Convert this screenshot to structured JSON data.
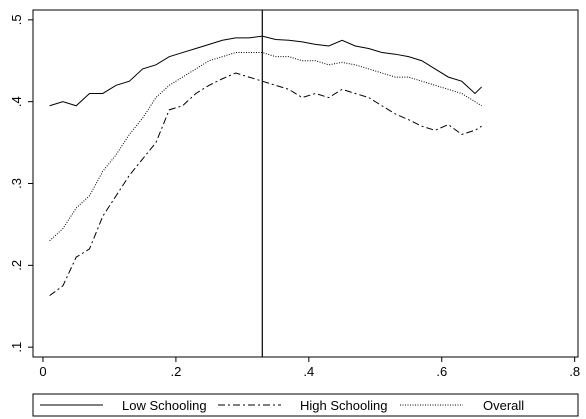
{
  "chart_data": {
    "type": "line",
    "x": [
      0.01,
      0.03,
      0.05,
      0.07,
      0.09,
      0.11,
      0.13,
      0.15,
      0.17,
      0.19,
      0.21,
      0.23,
      0.25,
      0.27,
      0.29,
      0.31,
      0.33,
      0.35,
      0.37,
      0.39,
      0.41,
      0.43,
      0.45,
      0.47,
      0.49,
      0.51,
      0.53,
      0.55,
      0.57,
      0.59,
      0.61,
      0.63,
      0.65,
      0.66
    ],
    "series": [
      {
        "name": "Low Schooling",
        "color": "#000000",
        "style": "solid",
        "values": [
          0.395,
          0.4,
          0.395,
          0.41,
          0.41,
          0.42,
          0.425,
          0.44,
          0.445,
          0.455,
          0.46,
          0.465,
          0.47,
          0.475,
          0.478,
          0.478,
          0.48,
          0.476,
          0.475,
          0.473,
          0.47,
          0.468,
          0.475,
          0.468,
          0.465,
          0.46,
          0.458,
          0.455,
          0.45,
          0.44,
          0.43,
          0.425,
          0.41,
          0.418
        ]
      },
      {
        "name": "High Schooling",
        "color": "#000000",
        "style": "dashdot",
        "values": [
          0.163,
          0.175,
          0.21,
          0.22,
          0.26,
          0.285,
          0.31,
          0.33,
          0.35,
          0.39,
          0.395,
          0.41,
          0.42,
          0.428,
          0.435,
          0.43,
          0.425,
          0.42,
          0.415,
          0.405,
          0.41,
          0.405,
          0.415,
          0.41,
          0.405,
          0.395,
          0.385,
          0.378,
          0.37,
          0.365,
          0.372,
          0.36,
          0.365,
          0.37
        ]
      },
      {
        "name": "Overall",
        "color": "#000000",
        "style": "dotted",
        "values": [
          0.23,
          0.245,
          0.27,
          0.285,
          0.315,
          0.335,
          0.36,
          0.38,
          0.405,
          0.42,
          0.43,
          0.44,
          0.45,
          0.455,
          0.46,
          0.46,
          0.46,
          0.455,
          0.455,
          0.45,
          0.45,
          0.445,
          0.448,
          0.445,
          0.44,
          0.435,
          0.43,
          0.43,
          0.425,
          0.42,
          0.415,
          0.41,
          0.4,
          0.395
        ]
      }
    ],
    "vline": 0.33,
    "xlim": [
      -0.015,
      0.805
    ],
    "xticks": [
      0,
      {
        "value": 0.2,
        "label": ".2"
      },
      {
        "value": 0.4,
        "label": ".4"
      },
      {
        "value": 0.6,
        "label": ".6"
      },
      {
        "value": 0.8,
        "label": ".8"
      }
    ],
    "ylim": [
      0.088,
      0.512
    ],
    "yticks": [
      {
        "value": 0.1,
        "label": ".1"
      },
      {
        "value": 0.2,
        "label": ".2"
      },
      {
        "value": 0.3,
        "label": ".3"
      },
      {
        "value": 0.4,
        "label": ".4"
      },
      {
        "value": 0.5,
        "label": ".5"
      }
    ],
    "legend": "bottom"
  }
}
